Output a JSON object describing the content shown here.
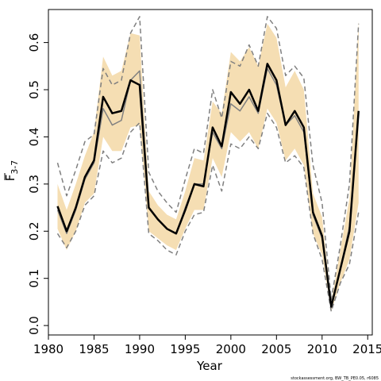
{
  "chart_data": {
    "type": "line",
    "title": "",
    "xlabel": "Year",
    "ylabel_main": "F",
    "ylabel_sub": "3-7",
    "xlim": [
      1980,
      2015.5
    ],
    "ylim": [
      -0.02,
      0.67
    ],
    "x_ticks": [
      1980,
      1985,
      1990,
      1995,
      2000,
      2005,
      2010,
      2015
    ],
    "x_tick_labels": [
      "1980",
      "1985",
      "1990",
      "1995",
      "2000",
      "2005",
      "2010",
      "2015"
    ],
    "y_ticks": [
      0.0,
      0.1,
      0.2,
      0.3,
      0.4,
      0.5,
      0.6
    ],
    "y_tick_labels": [
      "0.0",
      "0.1",
      "0.2",
      "0.3",
      "0.4",
      "0.5",
      "0.6"
    ],
    "grid": false,
    "footnote": "stockassessment.org, BW_TB_PE0.05, r6085",
    "colors": {
      "band": "#f5deb3",
      "estimate": "#000000",
      "comparison": "#808080"
    },
    "x": [
      1981,
      1982,
      1983,
      1984,
      1985,
      1986,
      1987,
      1988,
      1989,
      1990,
      1991,
      1992,
      1993,
      1994,
      1995,
      1996,
      1997,
      1998,
      1999,
      2000,
      2001,
      2002,
      2003,
      2004,
      2005,
      2006,
      2007,
      2008,
      2009,
      2010,
      2011,
      2012,
      2013,
      2014
    ],
    "series": [
      {
        "role": "estimate",
        "style": "solid",
        "values": [
          0.253,
          0.2,
          0.25,
          0.315,
          0.35,
          0.485,
          0.45,
          0.455,
          0.52,
          0.51,
          0.25,
          0.225,
          0.205,
          0.195,
          0.245,
          0.3,
          0.295,
          0.42,
          0.38,
          0.495,
          0.47,
          0.5,
          0.455,
          0.555,
          0.52,
          0.425,
          0.455,
          0.42,
          0.24,
          0.19,
          0.04,
          0.12,
          0.2,
          0.455
        ]
      },
      {
        "role": "band_upper",
        "style": "fill",
        "values": [
          0.3,
          0.245,
          0.3,
          0.36,
          0.41,
          0.57,
          0.53,
          0.54,
          0.62,
          0.615,
          0.285,
          0.255,
          0.235,
          0.225,
          0.285,
          0.355,
          0.35,
          0.475,
          0.45,
          0.58,
          0.56,
          0.59,
          0.55,
          0.64,
          0.61,
          0.505,
          0.54,
          0.5,
          0.28,
          0.23,
          0.05,
          0.16,
          0.27,
          0.645
        ]
      },
      {
        "role": "band_lower",
        "style": "fill",
        "values": [
          0.205,
          0.16,
          0.2,
          0.26,
          0.28,
          0.4,
          0.37,
          0.37,
          0.42,
          0.425,
          0.2,
          0.185,
          0.17,
          0.16,
          0.205,
          0.245,
          0.245,
          0.355,
          0.315,
          0.41,
          0.39,
          0.41,
          0.375,
          0.46,
          0.43,
          0.35,
          0.375,
          0.34,
          0.195,
          0.15,
          0.03,
          0.09,
          0.14,
          0.26
        ]
      },
      {
        "role": "comparison_estimate",
        "style": "solid-gray",
        "values": [
          0.245,
          0.195,
          0.245,
          0.31,
          0.345,
          0.46,
          0.425,
          0.435,
          0.52,
          0.54,
          0.25,
          0.225,
          0.205,
          0.195,
          0.25,
          0.3,
          0.3,
          0.41,
          0.375,
          0.47,
          0.455,
          0.485,
          0.45,
          0.545,
          0.51,
          0.425,
          0.445,
          0.41,
          0.235,
          0.185,
          0.038,
          0.12,
          0.21,
          0.45
        ]
      },
      {
        "role": "comparison_upper",
        "style": "dashed-gray",
        "values": [
          0.345,
          0.275,
          0.33,
          0.39,
          0.405,
          0.545,
          0.51,
          0.52,
          0.62,
          0.655,
          0.325,
          0.285,
          0.26,
          0.24,
          0.31,
          0.375,
          0.365,
          0.5,
          0.44,
          0.56,
          0.55,
          0.595,
          0.55,
          0.655,
          0.63,
          0.53,
          0.55,
          0.525,
          0.34,
          0.26,
          0.055,
          0.17,
          0.3,
          0.64
        ]
      },
      {
        "role": "comparison_lower",
        "style": "dashed-gray",
        "values": [
          0.195,
          0.165,
          0.2,
          0.255,
          0.275,
          0.37,
          0.345,
          0.355,
          0.41,
          0.43,
          0.195,
          0.18,
          0.16,
          0.15,
          0.2,
          0.235,
          0.24,
          0.34,
          0.285,
          0.385,
          0.375,
          0.4,
          0.375,
          0.45,
          0.42,
          0.345,
          0.36,
          0.335,
          0.195,
          0.14,
          0.03,
          0.09,
          0.13,
          0.24
        ]
      }
    ]
  }
}
